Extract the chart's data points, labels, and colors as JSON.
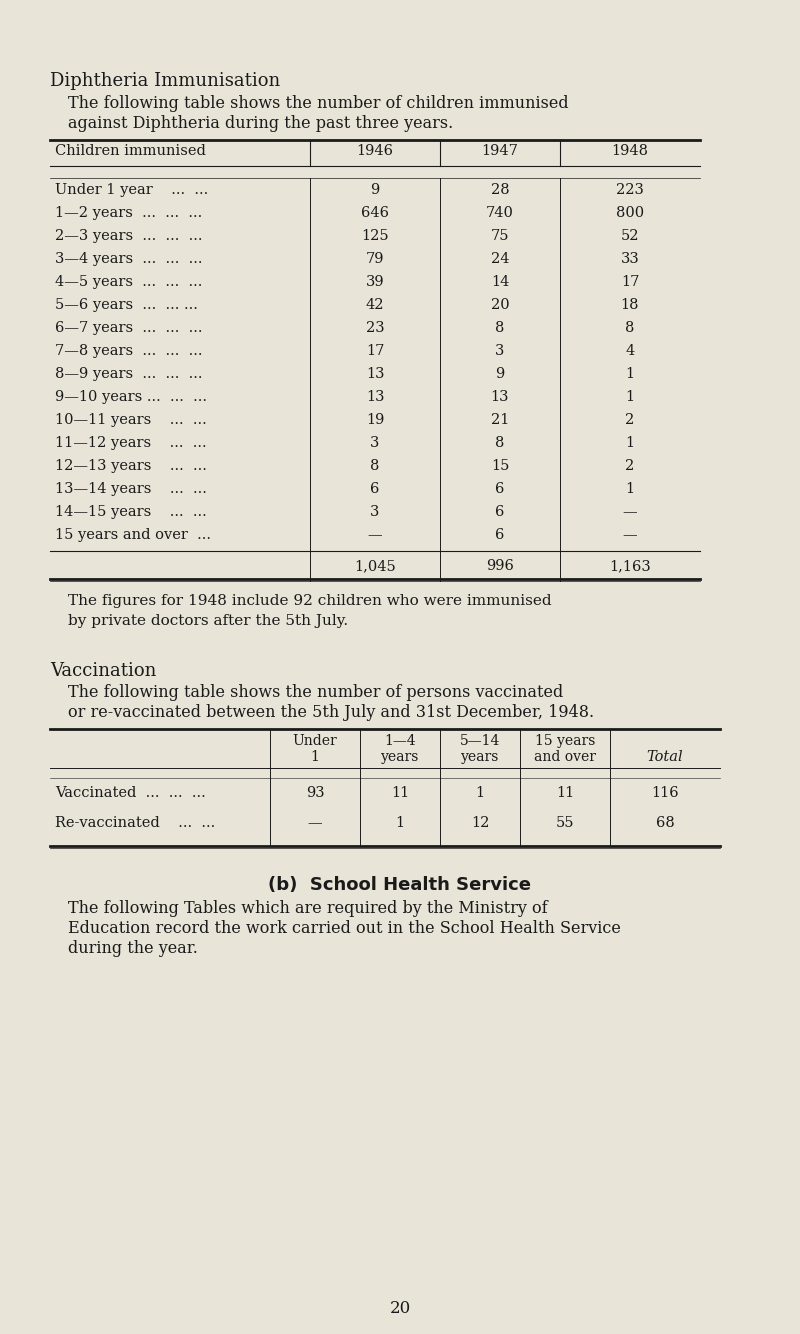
{
  "bg_color": "#e8e4d8",
  "title1": "Diphtheria Immunisation",
  "para1": "The following table shows the number of children immunised\nagainst Diphtheria during the past three years.",
  "table1_header": [
    "Children immunised",
    "1946",
    "1947",
    "1948"
  ],
  "table1_rows": [
    [
      "Under 1 year    ...  ...",
      "9",
      "28",
      "223"
    ],
    [
      "1—2 years  ...  ...  ...",
      "646",
      "740",
      "800"
    ],
    [
      "2—3 years  ...  ...  ...",
      "125",
      "75",
      "52"
    ],
    [
      "3—4 years  ...  ...  ...",
      "79",
      "24",
      "33"
    ],
    [
      "4—5 years  ...  ...  ...",
      "39",
      "14",
      "17"
    ],
    [
      "5—6 years  ...  ... ...",
      "42",
      "20",
      "18"
    ],
    [
      "6—7 years  ...  ...  ...",
      "23",
      "8",
      "8"
    ],
    [
      "7—8 years  ...  ...  ...",
      "17",
      "3",
      "4"
    ],
    [
      "8—9 years  ...  ...  ...",
      "13",
      "9",
      "1"
    ],
    [
      "9—10 years ...  ...  ...",
      "13",
      "13",
      "1"
    ],
    [
      "10—11 years    ...  ...",
      "19",
      "21",
      "2"
    ],
    [
      "11—12 years    ...  ...",
      "3",
      "8",
      "1"
    ],
    [
      "12—13 years    ...  ...",
      "8",
      "15",
      "2"
    ],
    [
      "13—14 years    ...  ...",
      "6",
      "6",
      "1"
    ],
    [
      "14—15 years    ...  ...",
      "3",
      "6",
      "—"
    ],
    [
      "15 years and over  ...",
      "—",
      "6",
      "—"
    ]
  ],
  "table1_totals": [
    "",
    "1,045",
    "996",
    "1,163"
  ],
  "note1": "The figures for 1948 include 92 children who were immunised\nby private doctors after the 5th July.",
  "title2": "Vaccination",
  "para2": "The following table shows the number of persons vaccinated\nor re-vaccinated between the 5th July and 31st December, 1948.",
  "table2_header": [
    "",
    "Under\n1",
    "1—4\nyears",
    "5—14\nyears",
    "15 years\nand over",
    "Total"
  ],
  "table2_rows": [
    [
      "Vaccinated  ...  ...  ...",
      "93",
      "11",
      "1",
      "11",
      "116"
    ],
    [
      "Re-vaccinated    ...  ...",
      "—",
      "1",
      "12",
      "55",
      "68"
    ]
  ],
  "title3": "(b)  School Health Service",
  "para3": "The following Tables which are required by the Ministry of\nEducation record the work carried out in the School Health Service\nduring the year.",
  "page_num": "20"
}
